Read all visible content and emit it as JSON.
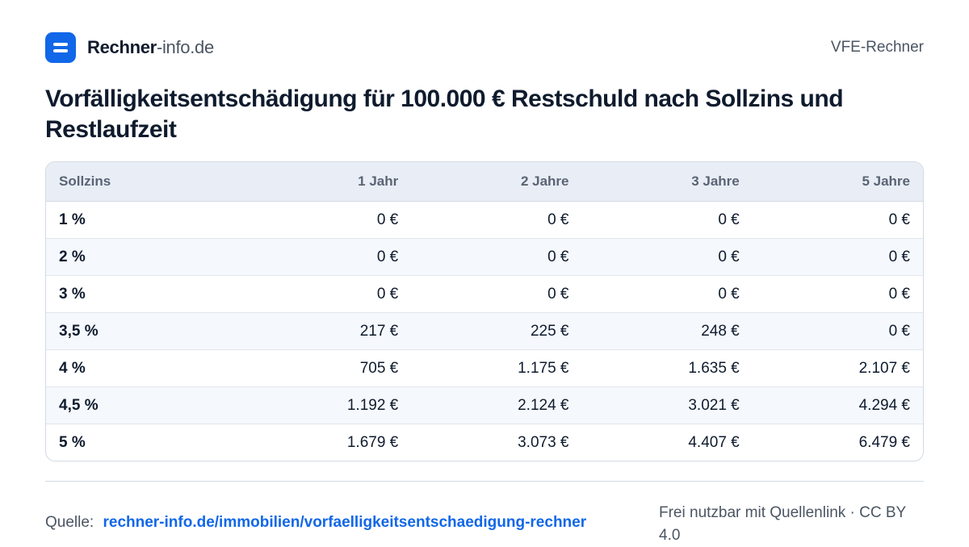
{
  "brand": {
    "name_strong": "Rechner",
    "name_light": "-info.de"
  },
  "header": {
    "right_label": "VFE-Rechner"
  },
  "title": "Vorfälligkeitsentschädigung für 100.000 € Restschuld nach Sollzins und Restlaufzeit",
  "table": {
    "columns": [
      "Sollzins",
      "1 Jahr",
      "2 Jahre",
      "3 Jahre",
      "5 Jahre"
    ],
    "rows": [
      [
        "1 %",
        "0 €",
        "0 €",
        "0 €",
        "0 €"
      ],
      [
        "2 %",
        "0 €",
        "0 €",
        "0 €",
        "0 €"
      ],
      [
        "3 %",
        "0 €",
        "0 €",
        "0 €",
        "0 €"
      ],
      [
        "3,5 %",
        "217 €",
        "225 €",
        "248 €",
        "0 €"
      ],
      [
        "4 %",
        "705 €",
        "1.175 €",
        "1.635 €",
        "2.107 €"
      ],
      [
        "4,5 %",
        "1.192 €",
        "2.124 €",
        "3.021 €",
        "4.294 €"
      ],
      [
        "5 %",
        "1.679 €",
        "3.073 €",
        "4.407 €",
        "6.479 €"
      ]
    ]
  },
  "footer": {
    "source_label": "Quelle:",
    "source_link": "rechner-info.de/immobilien/vorfaelligkeitsentschaedigung-rechner",
    "license": "Frei nutzbar mit Quellenlink · CC BY 4.0"
  },
  "colors": {
    "accent": "#1167e8",
    "header_bg": "#e9eef6",
    "text": "#0f1b2d"
  },
  "icons": {
    "logo": "calculator-equals-icon"
  }
}
